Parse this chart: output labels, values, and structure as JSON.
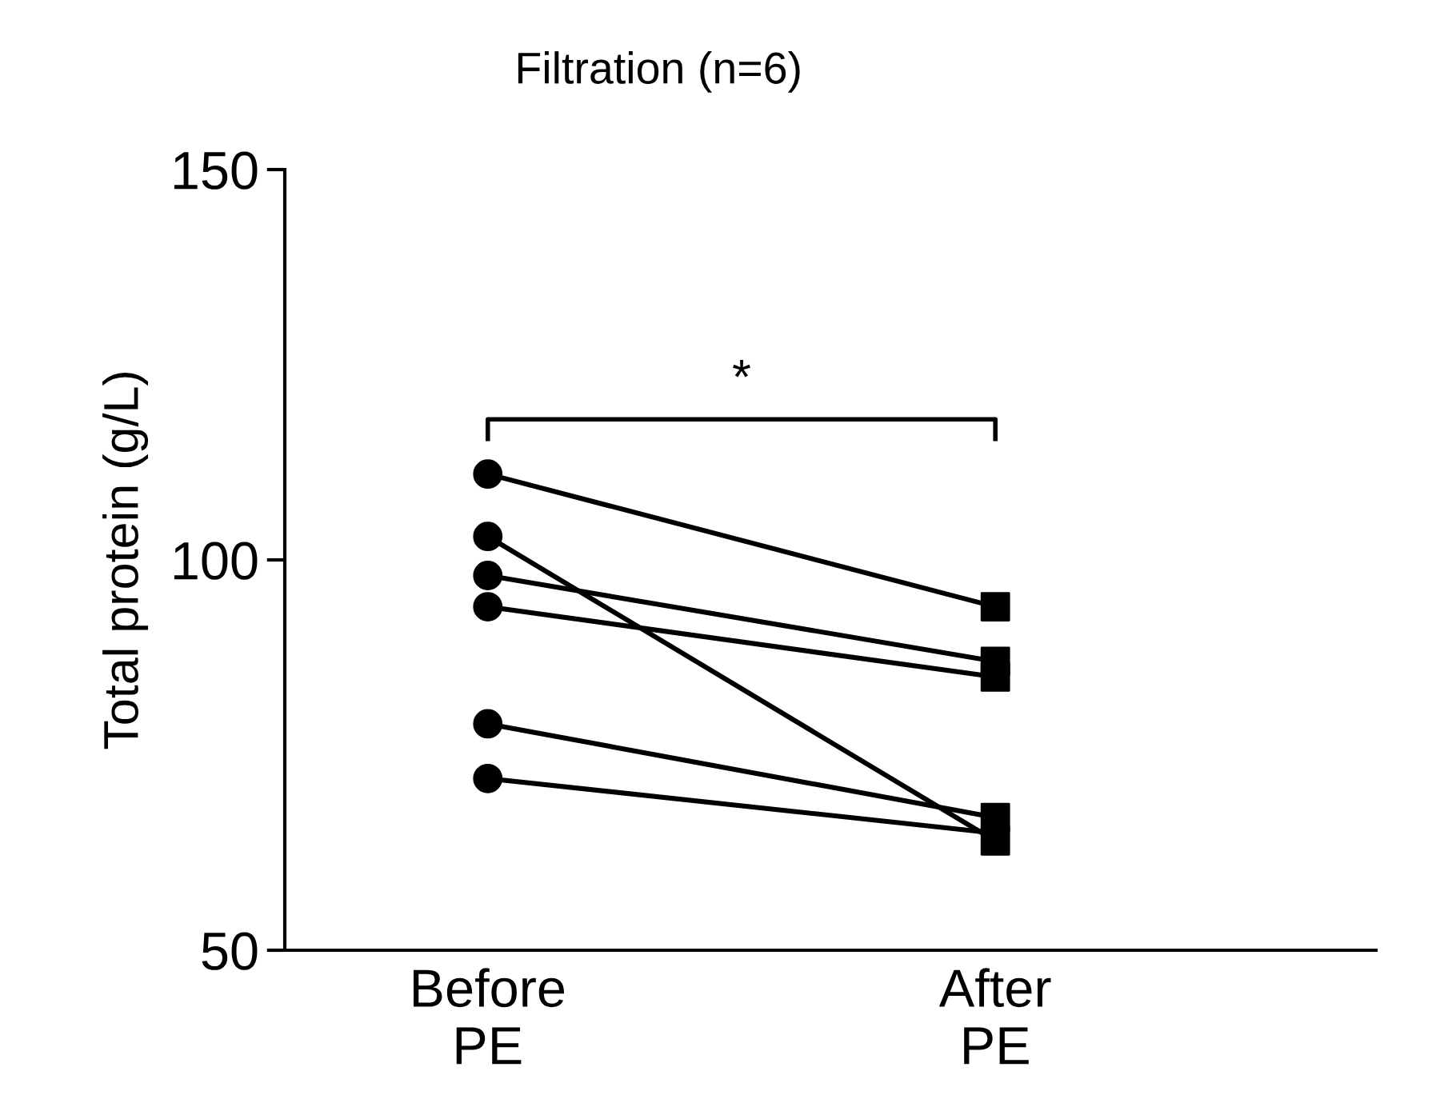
{
  "chart_data": {
    "type": "line",
    "title": "Filtration (n=6)",
    "ylabel": "Total protein (g/L)",
    "categories": [
      "Before\nPE",
      "After\nPE"
    ],
    "ylim": [
      50,
      150
    ],
    "yticks": [
      50,
      100,
      150
    ],
    "grid": false,
    "legend": false,
    "line_style": "solid",
    "series": [
      {
        "color": "#000000",
        "values": [
          111,
          94
        ]
      },
      {
        "color": "#000000",
        "values": [
          103,
          64
        ]
      },
      {
        "color": "#000000",
        "values": [
          98,
          87
        ]
      },
      {
        "color": "#000000",
        "values": [
          94,
          85
        ]
      },
      {
        "color": "#000000",
        "values": [
          79,
          67
        ]
      },
      {
        "color": "#000000",
        "values": [
          72,
          65
        ]
      },
      {
        "type": "scatter",
        "marker": "circle",
        "color": "#000000",
        "x": [
          "Before\nPE",
          "Before\nPE",
          "Before\nPE",
          "Before\nPE",
          "Before\nPE",
          "Before\nPE"
        ],
        "values": [
          111,
          103,
          98,
          94,
          79,
          72
        ]
      },
      {
        "type": "scatter",
        "marker": "square",
        "color": "#000000",
        "x": [
          "After\nPE",
          "After\nPE",
          "After\nPE",
          "After\nPE",
          "After\nPE",
          "After\nPE"
        ],
        "values": [
          94,
          64,
          87,
          85,
          67,
          null
        ]
      }
    ],
    "annotations": [
      "*"
    ]
  }
}
